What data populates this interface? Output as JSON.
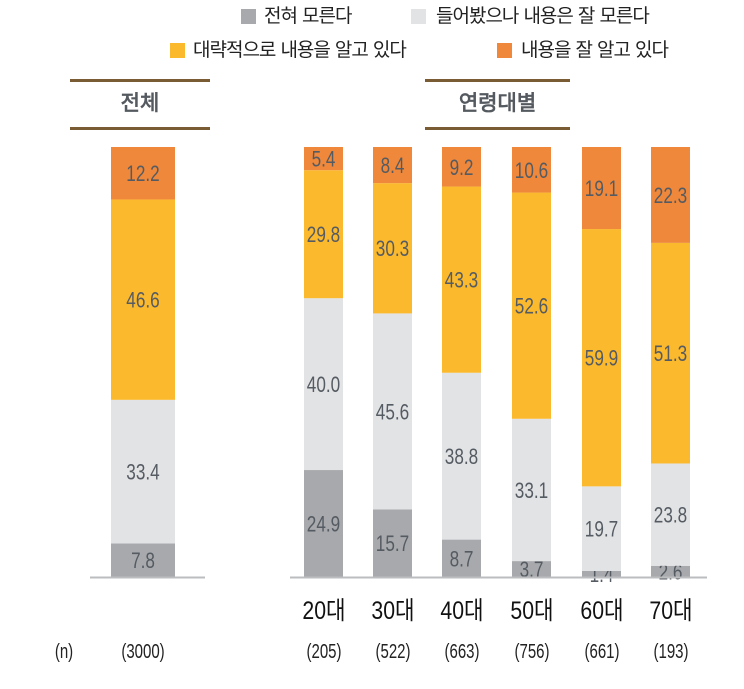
{
  "chart_data": {
    "type": "bar",
    "stacked": true,
    "percent": true,
    "legend": {
      "placement": "top-right"
    },
    "series": [
      {
        "name": "전혀 모른다",
        "color": "#a7a9ac",
        "values": [
          7.8,
          24.9,
          15.7,
          8.7,
          3.7,
          1.4,
          2.6
        ]
      },
      {
        "name": "들어봤으나 내용은 잘 모른다",
        "color": "#e2e3e5",
        "values": [
          33.4,
          40.0,
          45.6,
          38.8,
          33.1,
          19.7,
          23.8
        ]
      },
      {
        "name": "대략적으로 내용을 알고 있다",
        "color": "#fbb92e",
        "values": [
          46.6,
          29.8,
          30.3,
          43.3,
          52.6,
          59.9,
          51.3
        ]
      },
      {
        "name": "내용을 잘 알고 있다",
        "color": "#ef883b",
        "values": [
          12.2,
          5.4,
          8.4,
          9.2,
          10.6,
          19.1,
          22.3
        ]
      }
    ],
    "value_labels": [
      [
        "7.8",
        "24.9",
        "15.7",
        "8.7",
        "3.7",
        "1.4",
        "2.6"
      ],
      [
        "33.4",
        "40.0",
        "45.6",
        "38.8",
        "33.1",
        "19.7",
        "23.8"
      ],
      [
        "46.6",
        "29.8",
        "30.3",
        "43.3",
        "52.6",
        "59.9",
        "51.3"
      ],
      [
        "12.2",
        "5.4",
        "8.4",
        "9.2",
        "10.6",
        "19.1",
        "22.3"
      ]
    ],
    "categories": [
      "전체",
      "20대",
      "30대",
      "40대",
      "50대",
      "60대",
      "70대"
    ],
    "n_label": "(n)",
    "n_values": [
      "(3000)",
      "(205)",
      "(522)",
      "(663)",
      "(756)",
      "(661)",
      "(193)"
    ],
    "groups": {
      "total": "전체",
      "age": "연령대별"
    }
  }
}
